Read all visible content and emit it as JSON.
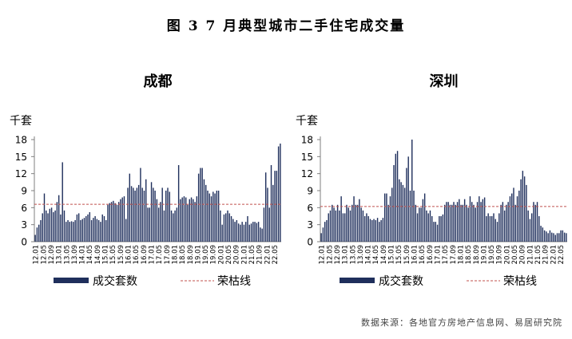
{
  "figure": {
    "title": "图 3   7 月典型城市二手住宅成交量",
    "source": "数据来源：各地官方房地产信息网、易居研究院"
  },
  "colors": {
    "bar": "#1f2f5c",
    "threshold": "#c0504d",
    "axis": "#7f7f7f"
  },
  "chart_data": [
    {
      "type": "bar",
      "title": "成都",
      "ylabel": "千套",
      "ylim": [
        0,
        18
      ],
      "yticks": [
        0,
        3,
        6,
        9,
        12,
        15,
        18
      ],
      "x_tick_labels": [
        "12.01",
        "12.05",
        "12.09",
        "13.01",
        "13.05",
        "13.09",
        "14.01",
        "14.05",
        "14.09",
        "15.01",
        "15.05",
        "15.09",
        "16.01",
        "16.05",
        "16.09",
        "17.01",
        "17.05",
        "17.09",
        "18.01",
        "18.05",
        "18.09",
        "19.01",
        "19.05",
        "19.09",
        "20.01",
        "20.05",
        "20.09",
        "21.01",
        "21.05",
        "21.09",
        "22.01",
        "22.05"
      ],
      "legend": {
        "bar_label": "成交套数",
        "line_label": "荣枯线"
      },
      "threshold": 6.6,
      "values": [
        1.2,
        2.5,
        3.0,
        3.8,
        5.0,
        8.5,
        5.5,
        5.0,
        5.8,
        6.0,
        5.2,
        5.5,
        7.0,
        8.2,
        4.8,
        14.0,
        5.5,
        3.5,
        3.8,
        3.5,
        3.6,
        3.5,
        3.8,
        4.8,
        5.0,
        3.8,
        4.0,
        4.2,
        4.5,
        4.8,
        5.2,
        3.8,
        4.2,
        4.5,
        4.0,
        3.8,
        3.5,
        4.8,
        4.5,
        3.8,
        6.5,
        6.8,
        7.0,
        7.2,
        6.8,
        6.5,
        7.0,
        7.5,
        7.8,
        8.0,
        4.0,
        9.5,
        12.0,
        9.8,
        9.5,
        9.0,
        9.5,
        10.0,
        13.0,
        9.5,
        9.0,
        11.0,
        6.0,
        6.0,
        10.5,
        9.5,
        9.0,
        7.5,
        6.0,
        7.0,
        9.5,
        5.5,
        9.0,
        9.5,
        8.8,
        5.5,
        5.0,
        5.5,
        6.0,
        13.5,
        7.5,
        7.8,
        8.0,
        7.8,
        6.5,
        7.5,
        7.8,
        7.5,
        7.0,
        8.0,
        12.0,
        13.0,
        13.0,
        11.0,
        10.0,
        9.0,
        8.5,
        8.0,
        8.8,
        8.5,
        9.0,
        9.0,
        5.5,
        3.0,
        4.8,
        5.0,
        5.5,
        5.0,
        4.5,
        4.0,
        3.5,
        3.8,
        3.2,
        3.0,
        3.5,
        3.0,
        3.5,
        4.5,
        3.0,
        3.2,
        3.5,
        3.5,
        3.3,
        3.5,
        2.5,
        2.3,
        6.0,
        12.2,
        9.5,
        6.0,
        13.5,
        10.0,
        12.5,
        12.5,
        16.8,
        17.3
      ]
    },
    {
      "type": "bar",
      "title": "深圳",
      "ylabel": "千套",
      "ylim": [
        0,
        18
      ],
      "yticks": [
        0,
        3,
        6,
        9,
        12,
        15,
        18
      ],
      "x_tick_labels": [
        "12.01",
        "12.05",
        "12.09",
        "13.01",
        "13.05",
        "13.09",
        "14.01",
        "14.05",
        "14.09",
        "15.01",
        "15.05",
        "15.09",
        "16.01",
        "16.05",
        "16.09",
        "17.01",
        "17.05",
        "17.09",
        "18.01",
        "18.05",
        "18.09",
        "19.01",
        "19.05",
        "19.09",
        "20.01",
        "20.05",
        "20.09",
        "21.01",
        "21.05",
        "21.09",
        "22.01",
        "22.05"
      ],
      "legend": {
        "bar_label": "成交套数",
        "line_label": "荣枯线"
      },
      "threshold": 6.2,
      "values": [
        1.5,
        2.5,
        3.5,
        3.8,
        5.0,
        5.5,
        6.5,
        6.0,
        5.5,
        6.5,
        5.5,
        8.0,
        5.0,
        5.0,
        6.5,
        6.0,
        5.5,
        6.5,
        8.0,
        6.5,
        6.5,
        7.5,
        6.0,
        5.5,
        4.5,
        5.0,
        4.5,
        4.0,
        3.8,
        4.0,
        3.8,
        4.2,
        3.5,
        3.8,
        4.2,
        8.5,
        8.5,
        6.5,
        8.0,
        9.5,
        13.5,
        15.5,
        16.0,
        11.0,
        10.5,
        10.0,
        9.5,
        13.0,
        15.0,
        9.0,
        18.0,
        9.0,
        6.5,
        5.0,
        6.0,
        6.0,
        7.5,
        8.5,
        5.5,
        5.0,
        5.5,
        4.5,
        3.5,
        3.5,
        3.0,
        4.5,
        4.5,
        4.8,
        6.5,
        7.0,
        7.0,
        6.5,
        6.5,
        7.0,
        6.5,
        7.0,
        7.5,
        6.5,
        6.5,
        7.5,
        6.5,
        6.0,
        8.0,
        7.0,
        6.5,
        6.0,
        7.0,
        8.0,
        7.0,
        7.5,
        7.8,
        4.5,
        5.0,
        4.5,
        4.5,
        5.0,
        4.0,
        3.5,
        5.0,
        6.5,
        7.0,
        5.5,
        6.5,
        7.0,
        8.0,
        8.5,
        9.5,
        6.5,
        8.0,
        9.0,
        11.0,
        12.5,
        11.5,
        10.0,
        5.5,
        4.0,
        5.0,
        7.0,
        6.5,
        7.0,
        4.5,
        2.8,
        2.5,
        2.0,
        1.8,
        1.5,
        2.0,
        1.6,
        1.5,
        1.2,
        1.5,
        1.5,
        2.0,
        2.0,
        1.6,
        1.5
      ]
    }
  ]
}
